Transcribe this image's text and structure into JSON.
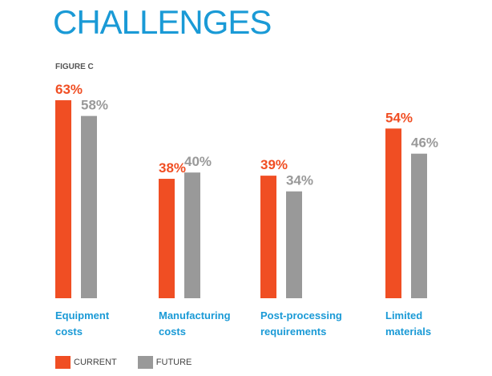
{
  "title": "CHALLENGES",
  "figure_label": "FIGURE C",
  "chart_data": {
    "type": "bar",
    "categories": [
      "Equipment\ncosts",
      "Manufacturing\ncosts",
      "Post-processing\nrequirements",
      "Limited\nmaterials"
    ],
    "series": [
      {
        "name": "CURRENT",
        "color": "#f04e23",
        "values": [
          63,
          38,
          39,
          54
        ]
      },
      {
        "name": "FUTURE",
        "color": "#999999",
        "values": [
          58,
          40,
          34,
          46
        ]
      }
    ],
    "value_labels": {
      "CURRENT": [
        "63%",
        "38%",
        "39%",
        "54%"
      ],
      "FUTURE": [
        "58%",
        "40%",
        "34%",
        "46%"
      ]
    },
    "unit": "%",
    "legend": "bottom-left",
    "grid": false
  }
}
